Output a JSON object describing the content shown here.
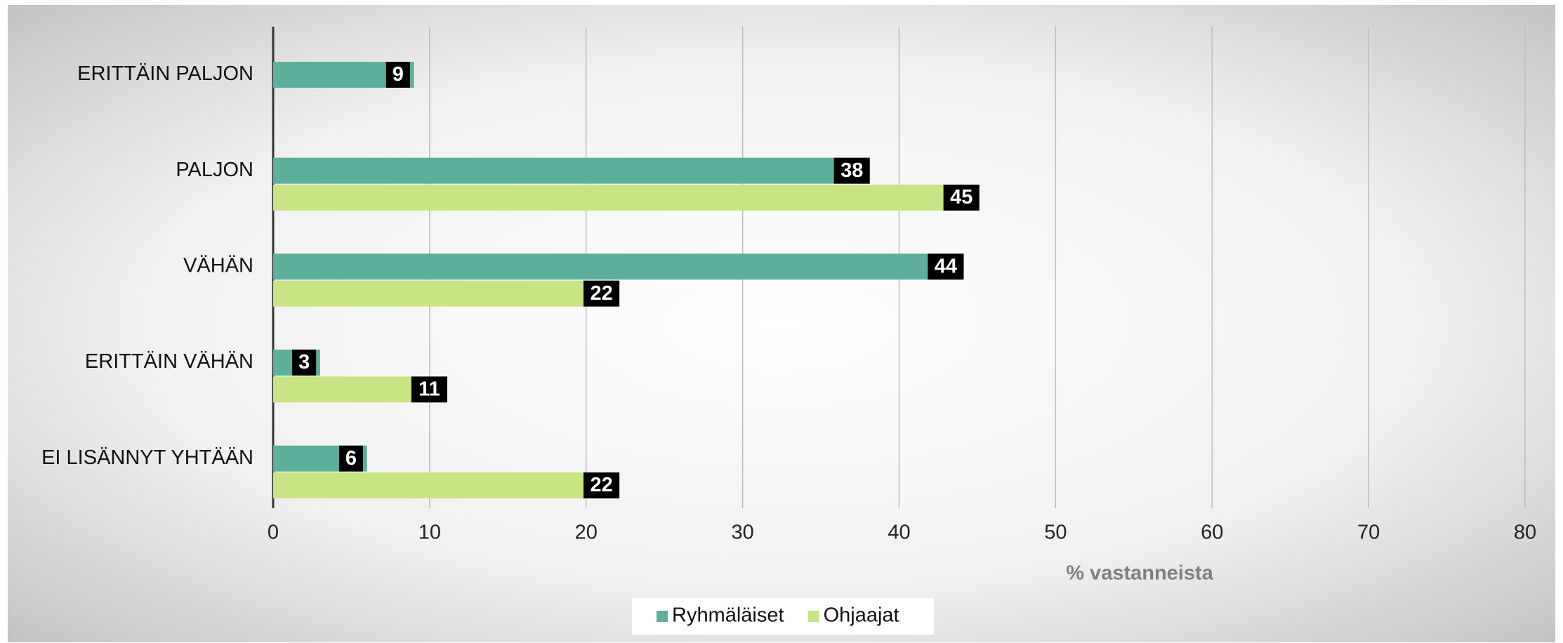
{
  "chart_data": {
    "type": "hbar",
    "categories": [
      "ERITTÄIN PALJON",
      "PALJON",
      "VÄHÄN",
      "ERITTÄIN VÄHÄN",
      "EI LISÄNNYT YHTÄÄN"
    ],
    "series": [
      {
        "name": "Ryhmäläiset",
        "color": "#5eae9c",
        "values": [
          9,
          38,
          44,
          3,
          6
        ]
      },
      {
        "name": "Ohjaajat",
        "color": "#c8e583",
        "values": [
          null,
          45,
          22,
          11,
          22
        ]
      }
    ],
    "xlabel": "% vastanneista",
    "xlim": [
      0,
      80
    ],
    "xticks": [
      0,
      10,
      20,
      30,
      40,
      50,
      60,
      70,
      80
    ],
    "grid": true,
    "legend": "bottom"
  }
}
